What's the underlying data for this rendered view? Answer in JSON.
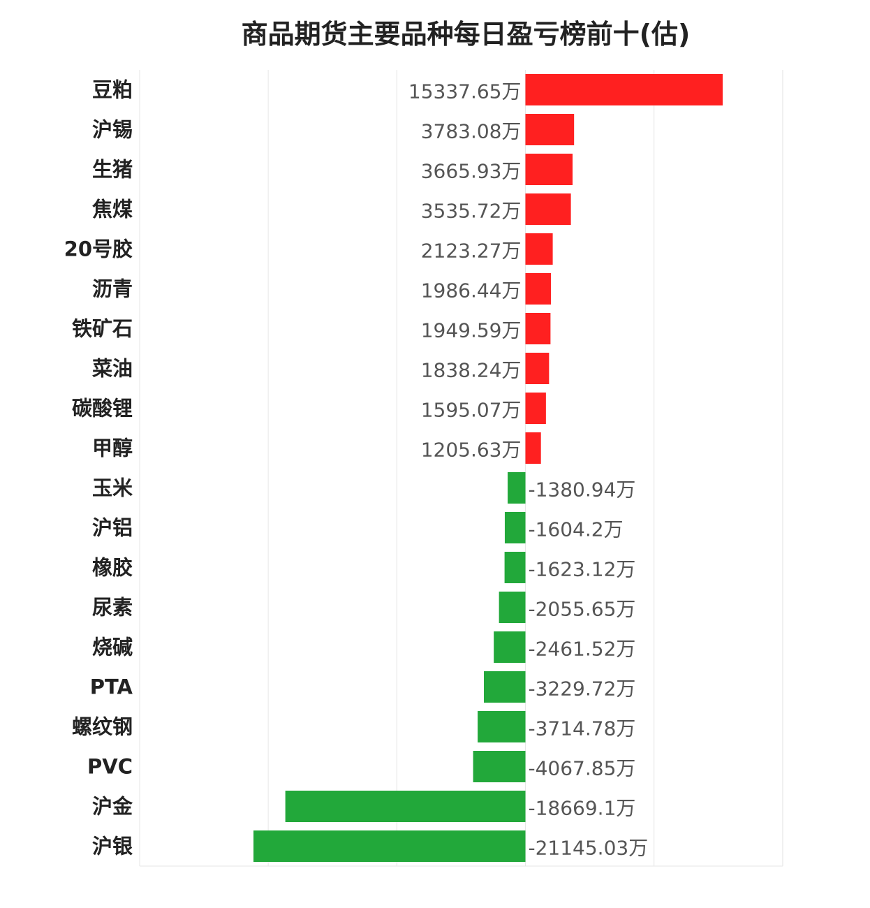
{
  "chart_data": {
    "type": "bar",
    "orientation": "horizontal",
    "title": "商品期货主要品种每日盈亏榜前十(估)",
    "unit": "万",
    "grid": true,
    "positive_color": "#ff2020",
    "negative_color": "#22a83a",
    "categories": [
      "豆粕",
      "沪锡",
      "生猪",
      "焦煤",
      "20号胶",
      "沥青",
      "铁矿石",
      "菜油",
      "碳酸锂",
      "甲醇",
      "玉米",
      "沪铝",
      "橡胶",
      "尿素",
      "烧碱",
      "PTA",
      "螺纹钢",
      "PVC",
      "沪金",
      "沪银"
    ],
    "values": [
      15337.65,
      3783.08,
      3665.93,
      3535.72,
      2123.27,
      1986.44,
      1949.59,
      1838.24,
      1595.07,
      1205.63,
      -1380.94,
      -1604.2,
      -1623.12,
      -2055.65,
      -2461.52,
      -3229.72,
      -3714.78,
      -4067.85,
      -18669.1,
      -21145.03
    ],
    "labels": [
      "15337.65万",
      "3783.08万",
      "3665.93万",
      "3535.72万",
      "2123.27万",
      "1986.44万",
      "1949.59万",
      "1838.24万",
      "1595.07万",
      "1205.63万",
      "-1380.94万",
      "-1604.2万",
      "-1623.12万",
      "-2055.65万",
      "-2461.52万",
      "-3229.72万",
      "-3714.78万",
      "-4067.85万",
      "-18669.1万",
      "-21145.03万"
    ],
    "xlim": [
      -30000,
      20000
    ]
  }
}
